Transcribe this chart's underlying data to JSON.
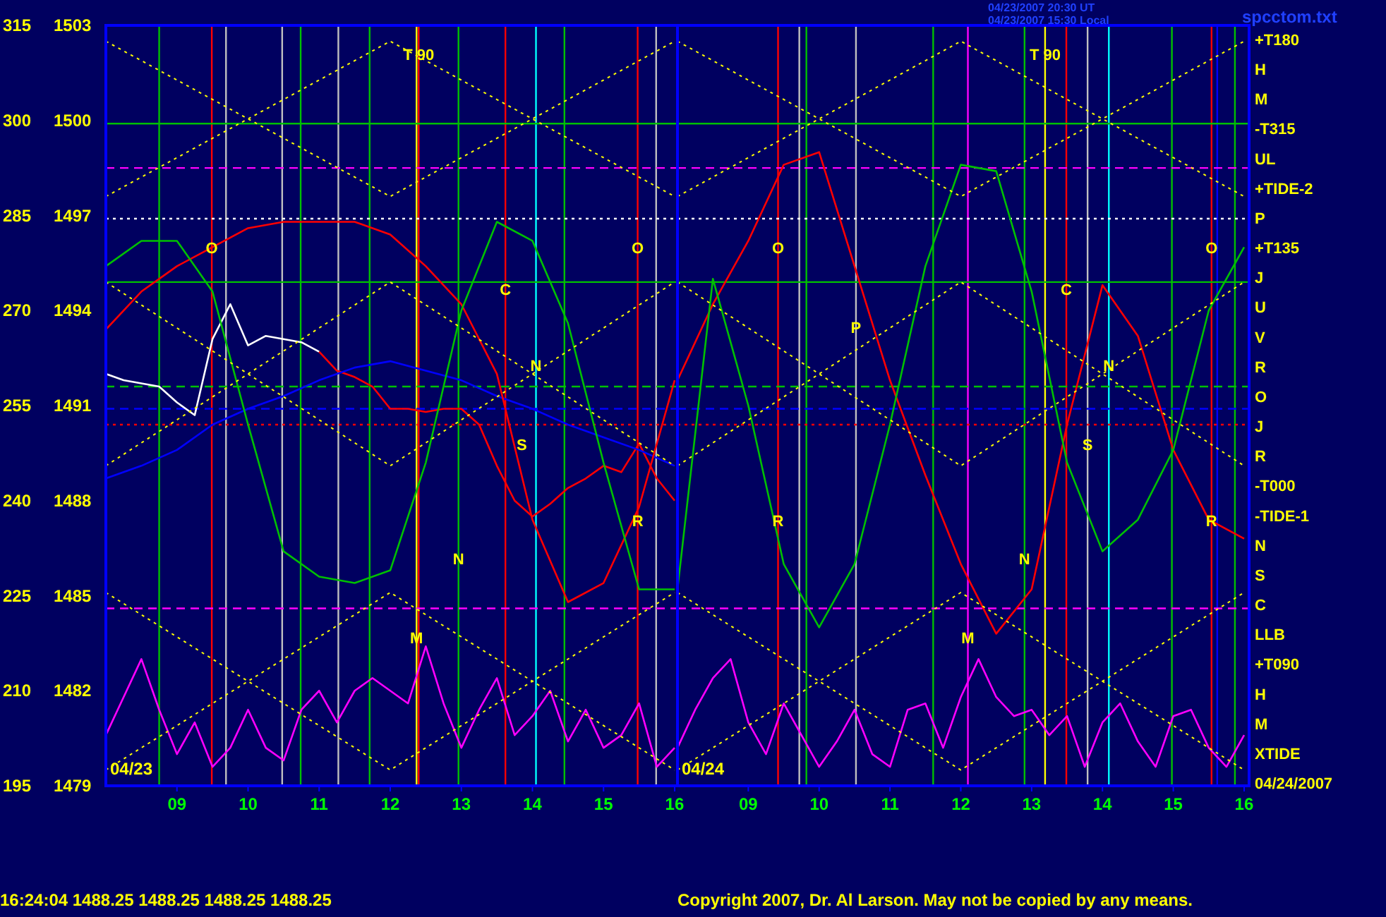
{
  "chart_data": [
    {
      "type": "line",
      "xlim": [
        8,
        16.04
      ],
      "xticks": [
        {
          "value": 9,
          "label": "09"
        },
        10,
        11,
        12,
        13,
        14,
        15,
        16
      ],
      "ylim": [
        1479,
        1503
      ],
      "yticks": [
        1479,
        1482,
        1485,
        1488,
        1491,
        1494,
        1497,
        1500,
        1503
      ],
      "y2lim": [
        195,
        315
      ],
      "y2ticks": [
        195,
        210,
        225,
        240,
        255,
        270,
        285,
        300,
        315
      ],
      "grid": false,
      "series": [
        {
          "color": "#ffffff",
          "x": [
            8,
            8.25,
            8.5,
            8.75,
            9,
            9.25,
            9.5,
            9.75,
            10,
            10.25,
            10.5,
            10.75,
            11
          ],
          "values": [
            1492.0,
            1491.8,
            1491.7,
            1491.6,
            1491.1,
            1490.7,
            1493.1,
            1494.2,
            1492.9,
            1493.2,
            1493.1,
            1493.0,
            1492.7
          ]
        },
        {
          "color": "#ff0000",
          "x": [
            11,
            11.25,
            11.5,
            11.75,
            12,
            12.25,
            12.5,
            12.75,
            13,
            13.25,
            13.5,
            13.75,
            14,
            14.25,
            14.5,
            14.75,
            15,
            15.25,
            15.5,
            15.75,
            16
          ],
          "values": [
            1492.7,
            1492.1,
            1491.9,
            1491.6,
            1490.9,
            1490.9,
            1490.8,
            1490.9,
            1490.9,
            1490.4,
            1489.1,
            1488.0,
            1487.5,
            1487.9,
            1488.4,
            1488.7,
            1489.1,
            1488.9,
            1489.8,
            1488.7,
            1488.0
          ]
        },
        {
          "color": "#0000ff",
          "x": [
            8,
            8.5,
            9,
            9.5,
            10,
            10.5,
            11,
            11.5,
            12,
            12.5,
            13,
            13.5,
            14,
            14.5,
            15,
            15.5,
            16
          ],
          "values": [
            1488.7,
            1489.1,
            1489.6,
            1490.4,
            1490.9,
            1491.3,
            1491.8,
            1492.2,
            1492.4,
            1492.1,
            1491.8,
            1491.3,
            1490.9,
            1490.4,
            1490.0,
            1489.6,
            1489.1
          ]
        },
        {
          "color": "#ff0000",
          "axis": "y2",
          "x": [
            8,
            8.5,
            9,
            9.5,
            10,
            10.5,
            11,
            11.5,
            12,
            12.5,
            13,
            13.5,
            14,
            14.5,
            15,
            15.5,
            16
          ],
          "values": [
            267,
            273,
            277,
            280,
            283,
            284,
            284,
            284,
            282,
            277,
            271,
            260,
            237,
            224,
            227,
            239,
            259
          ]
        },
        {
          "color": "#00c000",
          "axis": "y2",
          "x": [
            8,
            8.5,
            9,
            9.5,
            10,
            10.5,
            11,
            11.5,
            12,
            12.5,
            13,
            13.5,
            14,
            14.5,
            15,
            15.5,
            16
          ],
          "values": [
            277,
            281,
            281,
            273,
            252,
            232,
            228,
            227,
            229,
            246,
            270,
            284,
            281,
            268,
            246,
            226,
            226
          ]
        },
        {
          "color": "#ff00ff",
          "axis": "y2",
          "x": [
            8,
            8.25,
            8.5,
            8.75,
            9,
            9.25,
            9.5,
            9.75,
            10,
            10.25,
            10.5,
            10.75,
            11,
            11.25,
            11.5,
            11.75,
            12,
            12.25,
            12.5,
            12.75,
            13,
            13.25,
            13.5,
            13.75,
            14,
            14.25,
            14.5,
            14.75,
            15,
            15.25,
            15.5,
            15.75,
            16
          ],
          "values": [
            203,
            209,
            215,
            207,
            200,
            205,
            198,
            201,
            207,
            201,
            199,
            207,
            210,
            205,
            210,
            212,
            210,
            208,
            217,
            208,
            201,
            207,
            212,
            203,
            206,
            210,
            202,
            207,
            201,
            203,
            208,
            198,
            201
          ]
        },
        {
          "color": "#ffff00",
          "line_style": "dotted",
          "x": [
            8,
            12,
            16
          ],
          "values": [
            1494.9,
            1489.1,
            1494.9
          ]
        },
        {
          "color": "#ffff00",
          "line_style": "dotted",
          "x": [
            8,
            12,
            16
          ],
          "values": [
            1489.1,
            1494.9,
            1489.1
          ]
        },
        {
          "color": "#ffff00",
          "line_style": "dotted",
          "x": [
            8,
            12,
            16
          ],
          "values": [
            1479.5,
            1485.1,
            1479.5
          ]
        },
        {
          "color": "#ffff00",
          "line_style": "dotted",
          "x": [
            8,
            12,
            16
          ],
          "values": [
            1485.1,
            1479.5,
            1485.1
          ]
        },
        {
          "color": "#ffff00",
          "line_style": "dotted",
          "x": [
            8,
            12,
            16
          ],
          "values": [
            1502.5,
            1497.6,
            1502.5
          ]
        },
        {
          "color": "#ffff00",
          "line_style": "dotted",
          "x": [
            8,
            12,
            16
          ],
          "values": [
            1497.6,
            1502.5,
            1497.6
          ]
        }
      ],
      "ref_lines": [
        {
          "axis": "x",
          "value": 8.75,
          "color": "#00c000"
        },
        {
          "axis": "x",
          "value": 9.49,
          "color": "#ff0000"
        },
        {
          "axis": "x",
          "value": 9.69,
          "color": "#c0c0c0"
        },
        {
          "axis": "x",
          "value": 10.48,
          "color": "#c0c0c0"
        },
        {
          "axis": "x",
          "value": 10.74,
          "color": "#00c000"
        },
        {
          "axis": "x",
          "value": 11.27,
          "color": "#c0c0c0"
        },
        {
          "axis": "x",
          "value": 11.71,
          "color": "#00c000"
        },
        {
          "axis": "x",
          "value": 12.37,
          "color": "#ffff00"
        },
        {
          "axis": "x",
          "value": 12.4,
          "color": "#ff0000"
        },
        {
          "axis": "x",
          "value": 12.96,
          "color": "#00c000"
        },
        {
          "axis": "x",
          "value": 13.62,
          "color": "#ff0000"
        },
        {
          "axis": "x",
          "value": 14.05,
          "color": "#00ffff"
        },
        {
          "axis": "x",
          "value": 14.45,
          "color": "#00c000"
        },
        {
          "axis": "x",
          "value": 15.48,
          "color": "#ff0000"
        },
        {
          "axis": "x",
          "value": 15.74,
          "color": "#c0c0c0"
        },
        {
          "axis": "y",
          "value": 1499.9,
          "color": "#00c000"
        },
        {
          "axis": "y",
          "value": 1498.5,
          "color": "#ff00ff",
          "line_style": "dashed"
        },
        {
          "axis": "y",
          "value": 1496.9,
          "color": "#ffffff",
          "line_style": "dotted"
        },
        {
          "axis": "y",
          "value": 1494.9,
          "color": "#00c000"
        },
        {
          "axis": "y",
          "value": 1491.6,
          "color": "#00c000",
          "line_style": "dashed"
        },
        {
          "axis": "y",
          "value": 1490.9,
          "color": "#0000ff",
          "line_style": "dashed"
        },
        {
          "axis": "y",
          "value": 1490.4,
          "color": "#ff0000",
          "line_style": "dotted"
        },
        {
          "axis": "y",
          "value": 1484.6,
          "color": "#ff00ff",
          "line_style": "dashed"
        }
      ],
      "annotations": [
        "04/23",
        "16:24:04  1488.25 1488.25 1488.25 1488.25",
        {
          "text": "O",
          "x": 9.49,
          "y": 1495.8
        },
        {
          "text": "O",
          "x": 15.48,
          "y": 1495.8
        },
        {
          "text": "C",
          "x": 13.62,
          "y": 1494.5
        },
        {
          "text": "N",
          "x": 14.05,
          "y": 1492.1
        },
        {
          "text": "S",
          "x": 13.85,
          "y": 1489.6
        },
        {
          "text": "R",
          "x": 15.48,
          "y": 1487.2
        },
        {
          "text": "N",
          "x": 12.96,
          "y": 1486.0
        },
        {
          "text": "M",
          "x": 12.37,
          "y": 1483.5
        },
        {
          "text": "T 90",
          "x": 12.4,
          "y": 1501.9
        }
      ]
    },
    {
      "type": "line",
      "xlim": [
        8,
        16.07
      ],
      "xticks": [
        {
          "value": 9,
          "label": "09"
        },
        10,
        11,
        12,
        13,
        14,
        15,
        16
      ],
      "tick_labels": "x",
      "ylim": [
        1479,
        1503
      ],
      "y2lim": [
        195,
        315
      ],
      "grid": false,
      "series": [
        {
          "color": "#ff0000",
          "axis": "y2",
          "x": [
            8,
            8.5,
            9,
            9.5,
            10,
            10.5,
            11,
            11.5,
            12,
            12.5,
            13,
            13.5,
            14,
            14.5,
            15,
            15.5,
            16
          ],
          "values": [
            259,
            271,
            281,
            293,
            295,
            277,
            259,
            244,
            230,
            219,
            226,
            252,
            274,
            266,
            248,
            237,
            234
          ]
        },
        {
          "color": "#00c000",
          "axis": "y2",
          "x": [
            8,
            8.5,
            9,
            9.5,
            10,
            10.5,
            11,
            11.5,
            12,
            12.5,
            13,
            13.5,
            14,
            14.5,
            15,
            15.5,
            16
          ],
          "values": [
            226,
            275,
            255,
            230,
            220,
            230,
            252,
            277,
            293,
            292,
            273,
            246,
            232,
            237,
            248,
            270,
            280
          ]
        },
        {
          "color": "#ff00ff",
          "axis": "y2",
          "x": [
            8,
            8.25,
            8.5,
            8.75,
            9,
            9.25,
            9.5,
            9.75,
            10,
            10.25,
            10.5,
            10.75,
            11,
            11.25,
            11.5,
            11.75,
            12,
            12.25,
            12.5,
            12.75,
            13,
            13.25,
            13.5,
            13.75,
            14,
            14.25,
            14.5,
            14.75,
            15,
            15.25,
            15.5,
            15.75,
            16
          ],
          "values": [
            201,
            207,
            212,
            215,
            205,
            200,
            208,
            203,
            198,
            202,
            207,
            200,
            198,
            207,
            208,
            201,
            209,
            215,
            209,
            206,
            207,
            203,
            206,
            198,
            205,
            208,
            202,
            198,
            206,
            207,
            201,
            198,
            203
          ]
        },
        {
          "color": "#ffff00",
          "line_style": "dotted",
          "x": [
            8,
            12,
            16
          ],
          "values": [
            1494.9,
            1489.1,
            1494.9
          ]
        },
        {
          "color": "#ffff00",
          "line_style": "dotted",
          "x": [
            8,
            12,
            16
          ],
          "values": [
            1489.1,
            1494.9,
            1489.1
          ]
        },
        {
          "color": "#ffff00",
          "line_style": "dotted",
          "x": [
            8,
            12,
            16
          ],
          "values": [
            1479.5,
            1485.1,
            1479.5
          ]
        },
        {
          "color": "#ffff00",
          "line_style": "dotted",
          "x": [
            8,
            12,
            16
          ],
          "values": [
            1485.1,
            1479.5,
            1485.1
          ]
        },
        {
          "color": "#ffff00",
          "line_style": "dotted",
          "x": [
            8,
            12,
            16
          ],
          "values": [
            1502.5,
            1497.6,
            1502.5
          ]
        },
        {
          "color": "#ffff00",
          "line_style": "dotted",
          "x": [
            8,
            12,
            16
          ],
          "values": [
            1497.6,
            1502.5,
            1497.6
          ]
        }
      ],
      "ref_lines": [
        {
          "axis": "x",
          "value": 9.42,
          "color": "#ff0000"
        },
        {
          "axis": "x",
          "value": 9.72,
          "color": "#c0c0c0"
        },
        {
          "axis": "x",
          "value": 9.82,
          "color": "#00c000"
        },
        {
          "axis": "x",
          "value": 10.52,
          "color": "#c0c0c0"
        },
        {
          "axis": "x",
          "value": 11.61,
          "color": "#00c000"
        },
        {
          "axis": "x",
          "value": 12.1,
          "color": "#ff00ff"
        },
        {
          "axis": "x",
          "value": 12.9,
          "color": "#00c000"
        },
        {
          "axis": "x",
          "value": 13.19,
          "color": "#ffff00"
        },
        {
          "axis": "x",
          "value": 13.49,
          "color": "#ff0000"
        },
        {
          "axis": "x",
          "value": 13.79,
          "color": "#c0c0c0"
        },
        {
          "axis": "x",
          "value": 14.09,
          "color": "#00ffff"
        },
        {
          "axis": "x",
          "value": 14.98,
          "color": "#00c000"
        },
        {
          "axis": "x",
          "value": 15.54,
          "color": "#ff0000"
        },
        {
          "axis": "x",
          "value": 15.62,
          "color": "#0000ff"
        },
        {
          "axis": "x",
          "value": 15.87,
          "color": "#00c000"
        },
        {
          "axis": "y",
          "value": 1499.9,
          "color": "#00c000"
        },
        {
          "axis": "y",
          "value": 1498.5,
          "color": "#ff00ff",
          "line_style": "dashed"
        },
        {
          "axis": "y",
          "value": 1496.9,
          "color": "#ffffff",
          "line_style": "dotted"
        },
        {
          "axis": "y",
          "value": 1494.9,
          "color": "#00c000"
        },
        {
          "axis": "y",
          "value": 1491.6,
          "color": "#00c000",
          "line_style": "dashed"
        },
        {
          "axis": "y",
          "value": 1490.9,
          "color": "#0000ff",
          "line_style": "dashed"
        },
        {
          "axis": "y",
          "value": 1490.4,
          "color": "#ff0000",
          "line_style": "dotted"
        },
        {
          "axis": "y",
          "value": 1484.6,
          "color": "#ff00ff",
          "line_style": "dashed"
        }
      ],
      "annotations": [
        "04/24",
        "04/23/2007 20:30 UT",
        "04/23/2007 15:30 Local",
        "spcctom.txt",
        "Copyright 2007, Dr. Al Larson. May not be copied by any means.",
        "+T180",
        "H",
        "M",
        "-T315",
        "UL",
        "+TIDE-2",
        "P",
        "+T135",
        "J",
        "U",
        "V",
        "R",
        "O",
        "J",
        "R",
        "-T000",
        "-TIDE-1",
        "N",
        "S",
        "C",
        "LLB",
        "+T090",
        "H",
        "M",
        "XTIDE",
        "04/24/2007",
        {
          "text": "O",
          "x": 9.42,
          "y": 1495.8
        },
        {
          "text": "O",
          "x": 15.54,
          "y": 1495.8
        },
        {
          "text": "C",
          "x": 13.49,
          "y": 1494.5
        },
        {
          "text": "N",
          "x": 14.09,
          "y": 1492.1
        },
        {
          "text": "S",
          "x": 13.79,
          "y": 1489.6
        },
        {
          "text": "R",
          "x": 9.42,
          "y": 1487.2
        },
        {
          "text": "R",
          "x": 15.54,
          "y": 1487.2
        },
        {
          "text": "N",
          "x": 12.9,
          "y": 1486.0
        },
        {
          "text": "M",
          "x": 12.1,
          "y": 1483.5
        },
        {
          "text": "T 90",
          "x": 13.19,
          "y": 1501.9
        },
        {
          "text": "P",
          "x": 10.52,
          "y": 1493.3
        }
      ]
    }
  ]
}
